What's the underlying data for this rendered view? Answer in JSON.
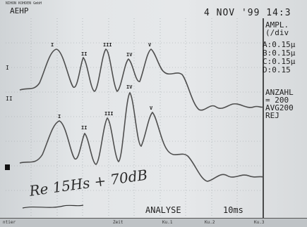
{
  "device": {
    "brand": "NIHON KOHDEN GmbH",
    "mode": "AEHP",
    "date": "4 NOV '99 14:3"
  },
  "amplitude": {
    "label": "AMPL.",
    "unit": "(/div",
    "channels": [
      "A:0.15µ",
      "B:0.15µ",
      "C:0.15µ",
      "D:0.15"
    ]
  },
  "summary": {
    "count_label": "ANZAHL",
    "count_value": "= 200",
    "avg": "AVG200",
    "rej": "REJ"
  },
  "footer": {
    "mode": "ANALYSE",
    "timebase": "10ms"
  },
  "annotation": {
    "handwritten": "Re 15Hs + 70dB"
  },
  "bottom_strip": {
    "items": [
      "ntier",
      "Zeit",
      "Ku.1",
      "Ku.2",
      "Ku.3"
    ]
  },
  "trace_labels": {
    "upper": "I",
    "lower": "II"
  },
  "colors": {
    "screen": "#e3e6e8",
    "trace": "#4f4f4f",
    "text": "#1f1f1f"
  }
}
